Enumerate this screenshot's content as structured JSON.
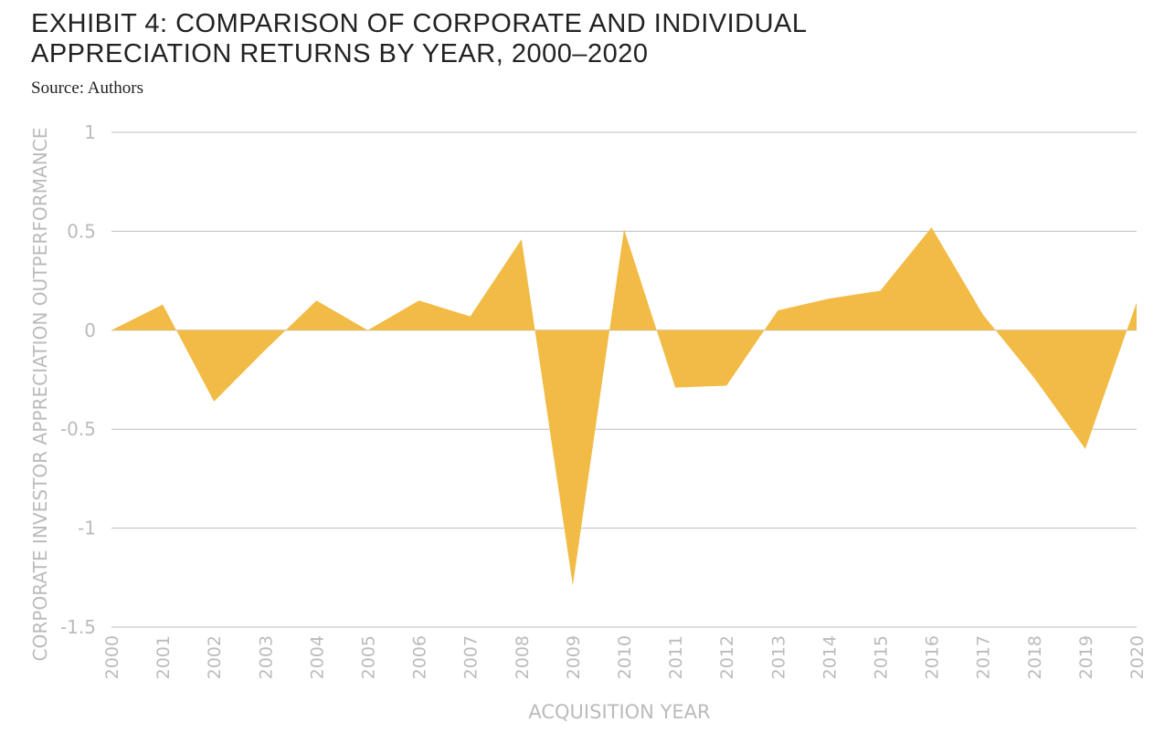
{
  "title_line1": "EXHIBIT 4: COMPARISON OF CORPORATE AND INDIVIDUAL",
  "title_line2": "APPRECIATION RETURNS BY YEAR, 2000–2020",
  "source": "Source: Authors",
  "chart_data": {
    "type": "area",
    "title": "EXHIBIT 4: COMPARISON OF CORPORATE AND INDIVIDUAL APPRECIATION RETURNS BY YEAR, 2000–2020",
    "xlabel": "ACQUISITION YEAR",
    "ylabel": "CORPORATE INVESTOR APPRECIATION OUTPERFORMANCE",
    "categories": [
      "2000",
      "2001",
      "2002",
      "2003",
      "2004",
      "2005",
      "2006",
      "2007",
      "2008",
      "2009",
      "2010",
      "2011",
      "2012",
      "2013",
      "2014",
      "2015",
      "2016",
      "2017",
      "2018",
      "2019",
      "2020"
    ],
    "values": [
      0.0,
      0.13,
      -0.36,
      -0.1,
      0.15,
      0.0,
      0.15,
      0.07,
      0.46,
      -1.29,
      0.51,
      -0.29,
      -0.28,
      0.1,
      0.16,
      0.2,
      0.52,
      0.08,
      -0.24,
      -0.6,
      0.14
    ],
    "yticks": [
      "1",
      "0.5",
      "0",
      "-0.5",
      "-1",
      "-1.5"
    ],
    "ylim": [
      -1.5,
      1
    ],
    "grid": true,
    "legend": "none",
    "fill_color": "#f2bb45",
    "grid_color": "#bdbdbd",
    "label_color": "#bbbbbb"
  }
}
